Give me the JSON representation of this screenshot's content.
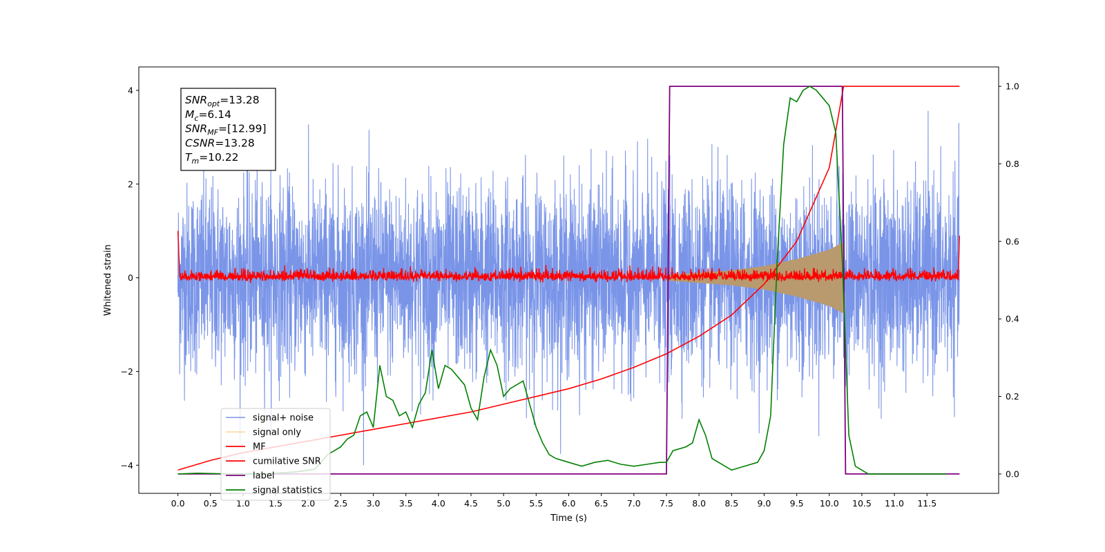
{
  "chart_data": {
    "type": "line",
    "xlabel": "Time (s)",
    "ylabel": "Whitened strain",
    "xlim": [
      -0.6,
      12.6
    ],
    "ylim": [
      -4.6,
      4.5
    ],
    "y2lim": [
      -0.05,
      1.05
    ],
    "x_ticks": [
      "0.0",
      "0.5",
      "1.0",
      "1.5",
      "2.0",
      "2.5",
      "3.0",
      "3.5",
      "4.0",
      "4.5",
      "5.0",
      "5.5",
      "6.0",
      "6.5",
      "7.0",
      "7.5",
      "8.0",
      "8.5",
      "9.0",
      "9.5",
      "10.0",
      "10.5",
      "11.0",
      "11.5"
    ],
    "y_ticks": [
      "4",
      "2",
      "0",
      "−2",
      "−4"
    ],
    "y2_ticks": [
      "1.0",
      "0.8",
      "0.6",
      "0.4",
      "0.2",
      "0.0"
    ],
    "legend_position": "lower-left",
    "annotation": {
      "lines": [
        {
          "sym": "SNR",
          "sub": "opt",
          "val": "=13.28"
        },
        {
          "sym": "M",
          "sub": "c",
          "val": "=6.14"
        },
        {
          "sym": "SNR",
          "sub": "MF",
          "val": "=[12.99]"
        },
        {
          "sym": "CSNR",
          "sub": "",
          "val": "=13.28"
        },
        {
          "sym": "T",
          "sub": "m",
          "val": "=10.22"
        }
      ]
    },
    "series": [
      {
        "name": "signal+ noise",
        "color": "#7a95e8",
        "axis": "left",
        "kind": "noise",
        "x_range": [
          0.0,
          12.0
        ],
        "amplitude_sd": 1.0,
        "max_abs": 4.0
      },
      {
        "name": "signal only",
        "color": "#f5b94a",
        "axis": "left",
        "kind": "chirp",
        "x_range": [
          7.5,
          10.22
        ],
        "envelope": [
          [
            7.5,
            0.06
          ],
          [
            8.5,
            0.16
          ],
          [
            9.0,
            0.25
          ],
          [
            9.5,
            0.4
          ],
          [
            10.0,
            0.6
          ],
          [
            10.2,
            0.75
          ]
        ]
      },
      {
        "name": "MF",
        "color": "#ff0000",
        "axis": "left",
        "kind": "matched-filter",
        "x_range": [
          0.0,
          12.0
        ],
        "baseline": 0.02,
        "spread": 0.08,
        "start_spike": 1.0,
        "end_spike": 0.9
      },
      {
        "name": "cumilative SNR",
        "color": "#ff0000",
        "axis": "right",
        "kind": "cumulative",
        "points": [
          [
            0.0,
            0.01
          ],
          [
            0.5,
            0.035
          ],
          [
            1.0,
            0.055
          ],
          [
            1.5,
            0.07
          ],
          [
            2.0,
            0.085
          ],
          [
            2.5,
            0.1
          ],
          [
            3.0,
            0.115
          ],
          [
            3.5,
            0.13
          ],
          [
            4.0,
            0.145
          ],
          [
            4.5,
            0.16
          ],
          [
            5.0,
            0.18
          ],
          [
            5.5,
            0.2
          ],
          [
            6.0,
            0.22
          ],
          [
            6.5,
            0.245
          ],
          [
            7.0,
            0.275
          ],
          [
            7.5,
            0.31
          ],
          [
            8.0,
            0.355
          ],
          [
            8.5,
            0.41
          ],
          [
            9.0,
            0.49
          ],
          [
            9.5,
            0.6
          ],
          [
            10.0,
            0.79
          ],
          [
            10.22,
            1.0
          ],
          [
            12.0,
            1.0
          ]
        ]
      },
      {
        "name": "label",
        "color": "#800080",
        "axis": "right",
        "kind": "step",
        "points": [
          [
            0.0,
            0.0
          ],
          [
            7.5,
            0.0
          ],
          [
            7.55,
            1.0
          ],
          [
            10.2,
            1.0
          ],
          [
            10.25,
            0.0
          ],
          [
            12.0,
            0.0
          ]
        ]
      },
      {
        "name": "signal statistics",
        "color": "#008000",
        "axis": "right",
        "kind": "line",
        "points": [
          [
            0.0,
            0.0
          ],
          [
            0.3,
            0.002
          ],
          [
            0.8,
            0.0
          ],
          [
            1.3,
            0.0
          ],
          [
            1.8,
            0.005
          ],
          [
            2.1,
            0.012
          ],
          [
            2.3,
            0.05
          ],
          [
            2.5,
            0.07
          ],
          [
            2.6,
            0.09
          ],
          [
            2.7,
            0.1
          ],
          [
            2.8,
            0.15
          ],
          [
            2.9,
            0.16
          ],
          [
            3.0,
            0.12
          ],
          [
            3.1,
            0.28
          ],
          [
            3.2,
            0.2
          ],
          [
            3.3,
            0.19
          ],
          [
            3.4,
            0.15
          ],
          [
            3.5,
            0.16
          ],
          [
            3.6,
            0.12
          ],
          [
            3.7,
            0.18
          ],
          [
            3.8,
            0.21
          ],
          [
            3.9,
            0.32
          ],
          [
            4.0,
            0.22
          ],
          [
            4.1,
            0.28
          ],
          [
            4.2,
            0.27
          ],
          [
            4.3,
            0.25
          ],
          [
            4.4,
            0.23
          ],
          [
            4.5,
            0.17
          ],
          [
            4.6,
            0.14
          ],
          [
            4.7,
            0.25
          ],
          [
            4.8,
            0.32
          ],
          [
            4.9,
            0.28
          ],
          [
            5.0,
            0.2
          ],
          [
            5.1,
            0.22
          ],
          [
            5.2,
            0.23
          ],
          [
            5.3,
            0.24
          ],
          [
            5.4,
            0.18
          ],
          [
            5.5,
            0.12
          ],
          [
            5.6,
            0.08
          ],
          [
            5.7,
            0.05
          ],
          [
            5.8,
            0.04
          ],
          [
            6.0,
            0.03
          ],
          [
            6.2,
            0.02
          ],
          [
            6.4,
            0.03
          ],
          [
            6.6,
            0.035
          ],
          [
            6.8,
            0.025
          ],
          [
            7.0,
            0.02
          ],
          [
            7.2,
            0.025
          ],
          [
            7.4,
            0.03
          ],
          [
            7.5,
            0.03
          ],
          [
            7.6,
            0.06
          ],
          [
            7.8,
            0.07
          ],
          [
            7.9,
            0.08
          ],
          [
            8.0,
            0.14
          ],
          [
            8.1,
            0.1
          ],
          [
            8.2,
            0.04
          ],
          [
            8.4,
            0.02
          ],
          [
            8.5,
            0.01
          ],
          [
            8.7,
            0.02
          ],
          [
            8.9,
            0.03
          ],
          [
            9.0,
            0.06
          ],
          [
            9.1,
            0.15
          ],
          [
            9.2,
            0.55
          ],
          [
            9.3,
            0.85
          ],
          [
            9.4,
            0.97
          ],
          [
            9.5,
            0.96
          ],
          [
            9.6,
            0.99
          ],
          [
            9.7,
            1.0
          ],
          [
            9.8,
            0.99
          ],
          [
            9.9,
            0.97
          ],
          [
            10.0,
            0.95
          ],
          [
            10.1,
            0.88
          ],
          [
            10.2,
            0.55
          ],
          [
            10.3,
            0.1
          ],
          [
            10.4,
            0.02
          ],
          [
            10.6,
            0.0
          ],
          [
            11.0,
            0.0
          ],
          [
            11.5,
            0.0
          ],
          [
            11.8,
            0.0
          ]
        ]
      }
    ]
  }
}
